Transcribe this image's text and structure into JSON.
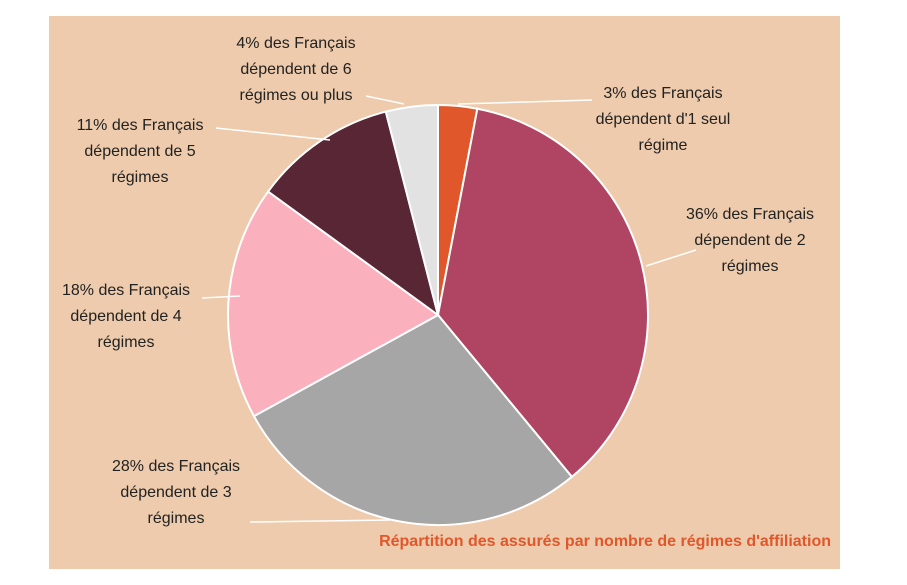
{
  "colors": {
    "background": "#EDCBAC",
    "title": "#E0572B",
    "leader": "#ffffff",
    "slice_border": "#ffffff"
  },
  "chart_data": {
    "type": "pie",
    "title": "Répartition des assurés par nombre de régimes d'affiliation",
    "unit": "%",
    "slices": [
      {
        "label": "3% des Français dépendent d'1 seul régime",
        "value": 3,
        "color": "#E0572B"
      },
      {
        "label": "36% des Français dépendent de 2 régimes",
        "value": 36,
        "color": "#AF4563"
      },
      {
        "label": "28%  des Français dépendent de 3 régimes",
        "value": 28,
        "color": "#A6A6A6"
      },
      {
        "label": "18% des Français dépendent de 4 régimes",
        "value": 18,
        "color": "#FBB1BD"
      },
      {
        "label": "11% des Français dépendent de 5 régimes",
        "value": 11,
        "color": "#592636"
      },
      {
        "label": "4% des Français dépendent de 6 régimes ou plus",
        "value": 4,
        "color": "#E2E2E2"
      }
    ]
  }
}
